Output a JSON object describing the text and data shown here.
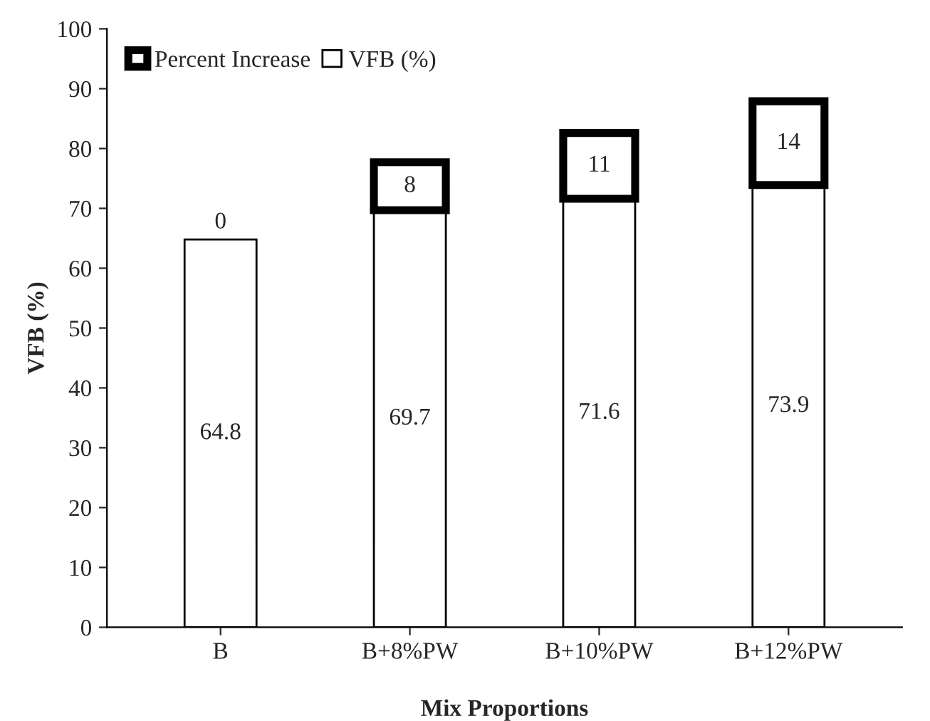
{
  "chart_data": {
    "type": "bar",
    "stacked": true,
    "xlabel": "Mix Proportions",
    "ylabel": "VFB (%)",
    "categories": [
      "B",
      "B+8%PW",
      "B+10%PW",
      "B+12%PW"
    ],
    "series": [
      {
        "name": "VFB (%)",
        "color": "#ffffff",
        "values": [
          64.8,
          69.7,
          71.6,
          73.9
        ]
      },
      {
        "name": "Percent Increase",
        "color": "#ffffff",
        "values": [
          0,
          8,
          11,
          14
        ]
      }
    ],
    "ylim": [
      0,
      100
    ],
    "yticks": [
      0,
      10,
      20,
      30,
      40,
      50,
      60,
      70,
      80,
      90,
      100
    ],
    "grid": false,
    "legend": "top left",
    "data_labels": true
  }
}
